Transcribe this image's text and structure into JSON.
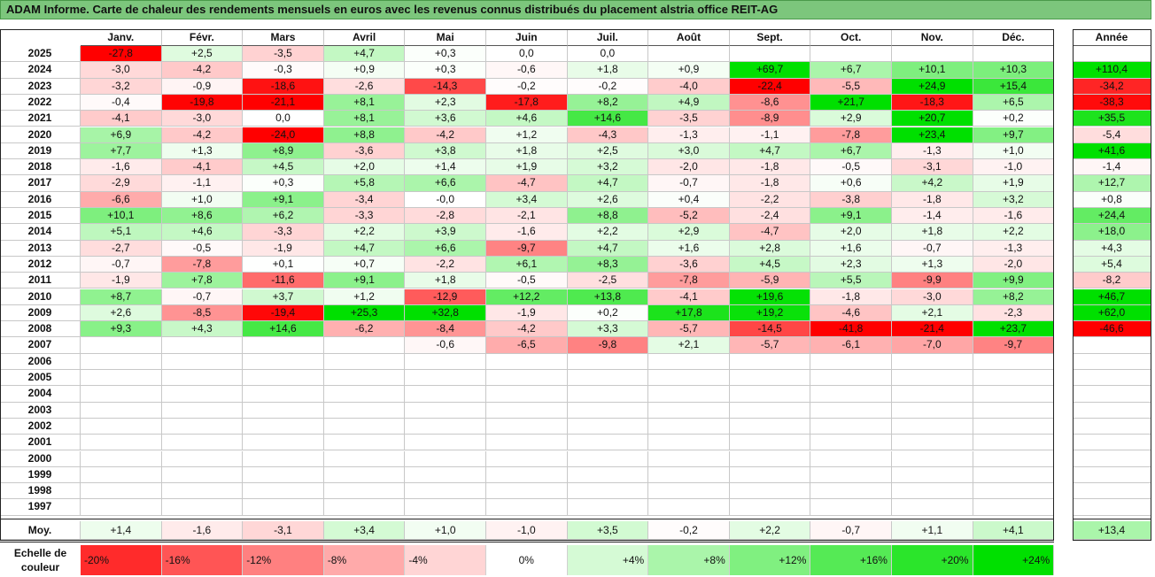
{
  "title": "ADAM Informe. Carte de chaleur des rendements mensuels en euros avec les revenus connus distribués du placement alstria office REIT-AG",
  "chart_data": {
    "type": "heatmap",
    "columns": [
      "Janv.",
      "Févr.",
      "Mars",
      "Avril",
      "Mai",
      "Juin",
      "Juil.",
      "Août",
      "Sept.",
      "Oct.",
      "Nov.",
      "Déc."
    ],
    "year_column_label": "Année",
    "rows": [
      {
        "year": "2025",
        "values": [
          "-27,8",
          "+2,5",
          "-3,5",
          "+4,7",
          "+0,3",
          "0,0",
          "0,0",
          "",
          "",
          "",
          "",
          ""
        ],
        "annual": ""
      },
      {
        "year": "2024",
        "values": [
          "-3,0",
          "-4,2",
          "-0,3",
          "+0,9",
          "+0,3",
          "-0,6",
          "+1,8",
          "+0,9",
          "+69,7",
          "+6,7",
          "+10,1",
          "+10,3"
        ],
        "annual": "+110,4"
      },
      {
        "year": "2023",
        "values": [
          "-3,2",
          "-0,9",
          "-18,6",
          "-2,6",
          "-14,3",
          "-0,2",
          "-0,2",
          "-4,0",
          "-22,4",
          "-5,5",
          "+24,9",
          "+15,4"
        ],
        "annual": "-34,2"
      },
      {
        "year": "2022",
        "values": [
          "-0,4",
          "-19,8",
          "-21,1",
          "+8,1",
          "+2,3",
          "-17,8",
          "+8,2",
          "+4,9",
          "-8,6",
          "+21,7",
          "-18,3",
          "+6,5"
        ],
        "annual": "-38,3"
      },
      {
        "year": "2021",
        "values": [
          "-4,1",
          "-3,0",
          "0,0",
          "+8,1",
          "+3,6",
          "+4,6",
          "+14,6",
          "-3,5",
          "-8,9",
          "+2,9",
          "+20,7",
          "+0,2"
        ],
        "annual": "+35,5"
      },
      {
        "year": "2020",
        "values": [
          "+6,9",
          "-4,2",
          "-24,0",
          "+8,8",
          "-4,2",
          "+1,2",
          "-4,3",
          "-1,3",
          "-1,1",
          "-7,8",
          "+23,4",
          "+9,7"
        ],
        "annual": "-5,4"
      },
      {
        "year": "2019",
        "values": [
          "+7,7",
          "+1,3",
          "+8,9",
          "-3,6",
          "+3,8",
          "+1,8",
          "+2,5",
          "+3,0",
          "+4,7",
          "+6,7",
          "-1,3",
          "+1,0"
        ],
        "annual": "+41,6"
      },
      {
        "year": "2018",
        "values": [
          "-1,6",
          "-4,1",
          "+4,5",
          "+2,0",
          "+1,4",
          "+1,9",
          "+3,2",
          "-2,0",
          "-1,8",
          "-0,5",
          "-3,1",
          "-1,0"
        ],
        "annual": "-1,4"
      },
      {
        "year": "2017",
        "values": [
          "-2,9",
          "-1,1",
          "+0,3",
          "+5,8",
          "+6,6",
          "-4,7",
          "+4,7",
          "-0,7",
          "-1,8",
          "+0,6",
          "+4,2",
          "+1,9"
        ],
        "annual": "+12,7"
      },
      {
        "year": "2016",
        "values": [
          "-6,6",
          "+1,0",
          "+9,1",
          "-3,4",
          "-0,0",
          "+3,4",
          "+2,6",
          "+0,4",
          "-2,2",
          "-3,8",
          "-1,8",
          "+3,2"
        ],
        "annual": "+0,8"
      },
      {
        "year": "2015",
        "values": [
          "+10,1",
          "+8,6",
          "+6,2",
          "-3,3",
          "-2,8",
          "-2,1",
          "+8,8",
          "-5,2",
          "-2,4",
          "+9,1",
          "-1,4",
          "-1,6"
        ],
        "annual": "+24,4"
      },
      {
        "year": "2014",
        "values": [
          "+5,1",
          "+4,6",
          "-3,3",
          "+2,2",
          "+3,9",
          "-1,6",
          "+2,2",
          "+2,9",
          "-4,7",
          "+2,0",
          "+1,8",
          "+2,2"
        ],
        "annual": "+18,0"
      },
      {
        "year": "2013",
        "values": [
          "-2,7",
          "-0,5",
          "-1,9",
          "+4,7",
          "+6,6",
          "-9,7",
          "+4,7",
          "+1,6",
          "+2,8",
          "+1,6",
          "-0,7",
          "-1,3"
        ],
        "annual": "+4,3"
      },
      {
        "year": "2012",
        "values": [
          "-0,7",
          "-7,8",
          "+0,1",
          "+0,7",
          "-2,2",
          "+6,1",
          "+8,3",
          "-3,6",
          "+4,5",
          "+2,3",
          "+1,3",
          "-2,0"
        ],
        "annual": "+5,4"
      },
      {
        "year": "2011",
        "values": [
          "-1,9",
          "+7,8",
          "-11,6",
          "+9,1",
          "+1,8",
          "-0,5",
          "-2,5",
          "-7,8",
          "-5,9",
          "+5,5",
          "-9,9",
          "+9,9"
        ],
        "annual": "-8,2"
      },
      {
        "year": "2010",
        "values": [
          "+8,7",
          "-0,7",
          "+3,7",
          "+1,2",
          "-12,9",
          "+12,2",
          "+13,8",
          "-4,1",
          "+19,6",
          "-1,8",
          "-3,0",
          "+8,2"
        ],
        "annual": "+46,7"
      },
      {
        "year": "2009",
        "values": [
          "+2,6",
          "-8,5",
          "-19,4",
          "+25,3",
          "+32,8",
          "-1,9",
          "+0,2",
          "+17,8",
          "+19,2",
          "-4,6",
          "+2,1",
          "-2,3"
        ],
        "annual": "+62,0"
      },
      {
        "year": "2008",
        "values": [
          "+9,3",
          "+4,3",
          "+14,6",
          "-6,2",
          "-8,4",
          "-4,2",
          "+3,3",
          "-5,7",
          "-14,5",
          "-41,8",
          "-21,4",
          "+23,7"
        ],
        "annual": "-46,6"
      },
      {
        "year": "2007",
        "values": [
          "",
          "",
          "",
          "",
          "-0,6",
          "-6,5",
          "-9,8",
          "+2,1",
          "-5,7",
          "-6,1",
          "-7,0",
          "-9,7"
        ],
        "annual": ""
      },
      {
        "year": "2006",
        "values": [
          "",
          "",
          "",
          "",
          "",
          "",
          "",
          "",
          "",
          "",
          "",
          ""
        ],
        "annual": ""
      },
      {
        "year": "2005",
        "values": [
          "",
          "",
          "",
          "",
          "",
          "",
          "",
          "",
          "",
          "",
          "",
          ""
        ],
        "annual": ""
      },
      {
        "year": "2004",
        "values": [
          "",
          "",
          "",
          "",
          "",
          "",
          "",
          "",
          "",
          "",
          "",
          ""
        ],
        "annual": ""
      },
      {
        "year": "2003",
        "values": [
          "",
          "",
          "",
          "",
          "",
          "",
          "",
          "",
          "",
          "",
          "",
          ""
        ],
        "annual": ""
      },
      {
        "year": "2002",
        "values": [
          "",
          "",
          "",
          "",
          "",
          "",
          "",
          "",
          "",
          "",
          "",
          ""
        ],
        "annual": ""
      },
      {
        "year": "2001",
        "values": [
          "",
          "",
          "",
          "",
          "",
          "",
          "",
          "",
          "",
          "",
          "",
          ""
        ],
        "annual": ""
      },
      {
        "year": "2000",
        "values": [
          "",
          "",
          "",
          "",
          "",
          "",
          "",
          "",
          "",
          "",
          "",
          ""
        ],
        "annual": ""
      },
      {
        "year": "1999",
        "values": [
          "",
          "",
          "",
          "",
          "",
          "",
          "",
          "",
          "",
          "",
          "",
          ""
        ],
        "annual": ""
      },
      {
        "year": "1998",
        "values": [
          "",
          "",
          "",
          "",
          "",
          "",
          "",
          "",
          "",
          "",
          "",
          ""
        ],
        "annual": ""
      },
      {
        "year": "1997",
        "values": [
          "",
          "",
          "",
          "",
          "",
          "",
          "",
          "",
          "",
          "",
          "",
          ""
        ],
        "annual": ""
      }
    ],
    "average": {
      "label": "Moy.",
      "values": [
        "+1,4",
        "-1,6",
        "-3,1",
        "+3,4",
        "+1,0",
        "-1,0",
        "+3,5",
        "-0,2",
        "+2,2",
        "-0,7",
        "+1,1",
        "+4,1"
      ],
      "annual": "+13,4"
    },
    "color_scale": {
      "label": "Echelle de couleur",
      "steps": [
        {
          "label": "-20%",
          "value": -20
        },
        {
          "label": "-16%",
          "value": -16
        },
        {
          "label": "-12%",
          "value": -12
        },
        {
          "label": "-8%",
          "value": -8
        },
        {
          "label": "-4%",
          "value": -4
        },
        {
          "label": "0%",
          "value": 0
        },
        {
          "label": "+4%",
          "value": 4
        },
        {
          "label": "+8%",
          "value": 8
        },
        {
          "label": "+12%",
          "value": 12
        },
        {
          "label": "+16%",
          "value": 16
        },
        {
          "label": "+20%",
          "value": 20
        },
        {
          "label": "+24%",
          "value": 24
        }
      ],
      "negative_color": "#ff0000",
      "positive_color": "#00e000",
      "neutral_color": "#ffffff"
    }
  }
}
